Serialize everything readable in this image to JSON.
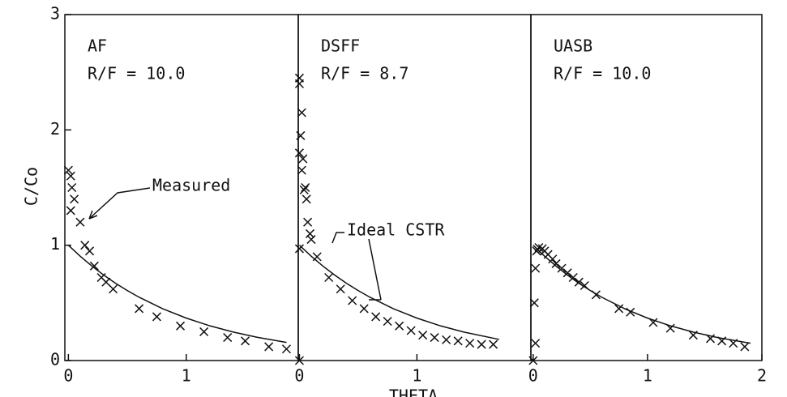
{
  "chart_data": [
    {
      "type": "scatter",
      "title": "AF",
      "subtitle": "R/F = 10.0",
      "ylabel": "C/Co",
      "annotation": "Measured",
      "xlim": [
        -0.03,
        1.95
      ],
      "ylim": [
        0,
        3
      ],
      "xticks": [
        0,
        1
      ],
      "yticks": [
        0,
        1,
        2,
        3
      ],
      "series": [
        {
          "type": "scatter",
          "color": "#111111",
          "x": [
            0,
            0.02,
            0.03,
            0.05,
            0.02,
            0.1,
            0.14,
            0.18,
            0.22,
            0.28,
            0.32,
            0.38,
            0.6,
            0.75,
            0.95,
            1.15,
            1.35,
            1.5,
            1.7,
            1.85
          ],
          "values": [
            1.65,
            1.6,
            1.5,
            1.4,
            1.3,
            1.2,
            1.0,
            0.95,
            0.82,
            0.72,
            0.68,
            0.62,
            0.45,
            0.38,
            0.3,
            0.25,
            0.2,
            0.17,
            0.12,
            0.1
          ]
        },
        {
          "type": "line",
          "color": "#111111",
          "x": [
            0,
            0.1,
            0.2,
            0.3,
            0.4,
            0.5,
            0.6,
            0.8,
            1.0,
            1.2,
            1.4,
            1.6,
            1.85
          ],
          "values": [
            1,
            0.905,
            0.819,
            0.741,
            0.67,
            0.607,
            0.549,
            0.449,
            0.368,
            0.301,
            0.247,
            0.202,
            0.157
          ]
        }
      ]
    },
    {
      "type": "scatter",
      "title": "DSFF",
      "subtitle": "R/F = 8.7",
      "annotation": "Ideal CSTR",
      "xlabel": "THETA",
      "xlim": [
        -0.01,
        1.97
      ],
      "ylim": [
        0,
        3
      ],
      "xticks": [
        0,
        1
      ],
      "series": [
        {
          "type": "scatter",
          "color": "#111111",
          "x": [
            0,
            0,
            0.02,
            0.01,
            0,
            0.03,
            0.02,
            0.05,
            0.04,
            0.06,
            0.07,
            0.09,
            0.1,
            0,
            0.15,
            0.25,
            0.35,
            0.45,
            0.55,
            0.65,
            0.75,
            0.85,
            0.95,
            1.05,
            1.15,
            1.25,
            1.35,
            1.45,
            1.55,
            1.65,
            0
          ],
          "values": [
            2.45,
            2.4,
            2.15,
            1.95,
            1.8,
            1.75,
            1.65,
            1.5,
            1.48,
            1.4,
            1.2,
            1.1,
            1.05,
            0.97,
            0.9,
            0.72,
            0.62,
            0.52,
            0.45,
            0.38,
            0.34,
            0.3,
            0.26,
            0.22,
            0.2,
            0.18,
            0.17,
            0.15,
            0.14,
            0.14,
            0
          ]
        },
        {
          "type": "line",
          "color": "#111111",
          "x": [
            0,
            0.1,
            0.2,
            0.3,
            0.4,
            0.5,
            0.6,
            0.8,
            1.0,
            1.2,
            1.4,
            1.7
          ],
          "values": [
            1,
            0.905,
            0.819,
            0.741,
            0.67,
            0.607,
            0.549,
            0.449,
            0.368,
            0.301,
            0.247,
            0.183
          ]
        }
      ]
    },
    {
      "type": "scatter",
      "title": "UASB",
      "subtitle": "R/F = 10.0",
      "xlim": [
        -0.02,
        2
      ],
      "ylim": [
        0,
        3
      ],
      "xticks": [
        0,
        1,
        2
      ],
      "series": [
        {
          "type": "scatter",
          "color": "#111111",
          "x": [
            0,
            0.02,
            0.01,
            0.02,
            0.03,
            0.05,
            0.08,
            0.1,
            0.13,
            0.17,
            0.2,
            0.25,
            0.3,
            0.35,
            0.4,
            0.45,
            0.55,
            0.75,
            0.85,
            1.05,
            1.2,
            1.4,
            1.55,
            1.65,
            1.75,
            1.85
          ],
          "values": [
            0,
            0.15,
            0.5,
            0.8,
            0.95,
            0.98,
            0.97,
            0.95,
            0.92,
            0.88,
            0.84,
            0.8,
            0.76,
            0.72,
            0.68,
            0.65,
            0.57,
            0.45,
            0.42,
            0.33,
            0.28,
            0.22,
            0.19,
            0.17,
            0.15,
            0.12
          ]
        },
        {
          "type": "line",
          "color": "#111111",
          "x": [
            0,
            0.1,
            0.2,
            0.3,
            0.4,
            0.5,
            0.6,
            0.8,
            1.0,
            1.2,
            1.4,
            1.6,
            1.9
          ],
          "values": [
            1,
            0.905,
            0.819,
            0.741,
            0.67,
            0.607,
            0.549,
            0.449,
            0.368,
            0.301,
            0.247,
            0.202,
            0.15
          ]
        }
      ]
    }
  ]
}
